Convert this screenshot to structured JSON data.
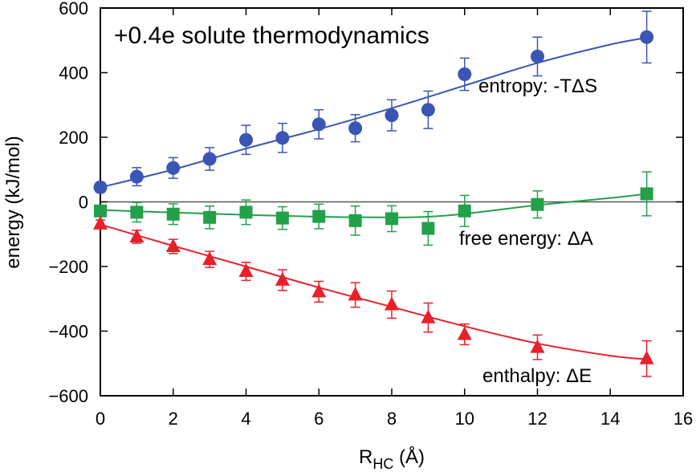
{
  "chart_data": {
    "type": "scatter",
    "title": "+0.4e solute thermodynamics",
    "xlabel": "R",
    "xlabel_sub": "HC",
    "xlabel_unit": " (Å)",
    "ylabel": "energy (kJ/mol)",
    "xlim": [
      0,
      16
    ],
    "ylim": [
      -600,
      600
    ],
    "xticks": [
      0,
      2,
      4,
      6,
      8,
      10,
      12,
      14,
      16
    ],
    "yticks": [
      -600,
      -400,
      -200,
      0,
      200,
      400,
      600
    ],
    "xtick_labels": [
      "0",
      "2",
      "4",
      "6",
      "8",
      "10",
      "12",
      "14",
      "16"
    ],
    "ytick_labels": [
      "−600",
      "−400",
      "−200",
      "0",
      "200",
      "400",
      "600"
    ],
    "zero_line": true,
    "grid": false,
    "series": [
      {
        "name": "entropy: -TΔS",
        "color": "#3a55b4",
        "marker": "circle",
        "x": [
          0,
          1,
          2,
          3,
          4,
          5,
          6,
          7,
          8,
          9,
          10,
          12,
          15
        ],
        "y": [
          45,
          78,
          105,
          133,
          192,
          198,
          240,
          228,
          268,
          285,
          395,
          450,
          510
        ],
        "err": [
          15,
          28,
          32,
          35,
          45,
          45,
          45,
          42,
          48,
          58,
          50,
          60,
          80
        ],
        "fit": [
          [
            0,
            45
          ],
          [
            2,
            100
          ],
          [
            4,
            165
          ],
          [
            6,
            225
          ],
          [
            8,
            290
          ],
          [
            10,
            360
          ],
          [
            12,
            430
          ],
          [
            14,
            487
          ],
          [
            15,
            508
          ]
        ]
      },
      {
        "name": "free energy: ΔA",
        "color": "#22a04a",
        "marker": "square",
        "x": [
          0,
          1,
          2,
          3,
          4,
          5,
          6,
          7,
          8,
          9,
          10,
          12,
          15
        ],
        "y": [
          -28,
          -32,
          -38,
          -48,
          -32,
          -50,
          -45,
          -58,
          -52,
          -82,
          -28,
          -8,
          25
        ],
        "err": [
          15,
          30,
          32,
          35,
          38,
          35,
          38,
          45,
          40,
          52,
          48,
          42,
          68
        ],
        "fit": [
          [
            0,
            -25
          ],
          [
            2,
            -33
          ],
          [
            4,
            -40
          ],
          [
            6,
            -46
          ],
          [
            8,
            -48
          ],
          [
            9,
            -46
          ],
          [
            10,
            -37
          ],
          [
            12,
            -10
          ],
          [
            14,
            12
          ],
          [
            15,
            25
          ]
        ]
      },
      {
        "name": "enthalpy: ΔE",
        "color": "#e8202a",
        "marker": "triangle",
        "x": [
          0,
          1,
          2,
          3,
          4,
          5,
          6,
          7,
          8,
          9,
          10,
          12,
          15
        ],
        "y": [
          -68,
          -108,
          -138,
          -178,
          -215,
          -242,
          -278,
          -288,
          -318,
          -358,
          -410,
          -450,
          -485
        ],
        "err": [
          12,
          20,
          22,
          25,
          28,
          32,
          32,
          38,
          42,
          45,
          32,
          38,
          55
        ],
        "fit": [
          [
            0,
            -70
          ],
          [
            2,
            -136
          ],
          [
            4,
            -200
          ],
          [
            6,
            -265
          ],
          [
            8,
            -325
          ],
          [
            10,
            -385
          ],
          [
            12,
            -438
          ],
          [
            14,
            -476
          ],
          [
            15,
            -487
          ]
        ]
      }
    ]
  }
}
